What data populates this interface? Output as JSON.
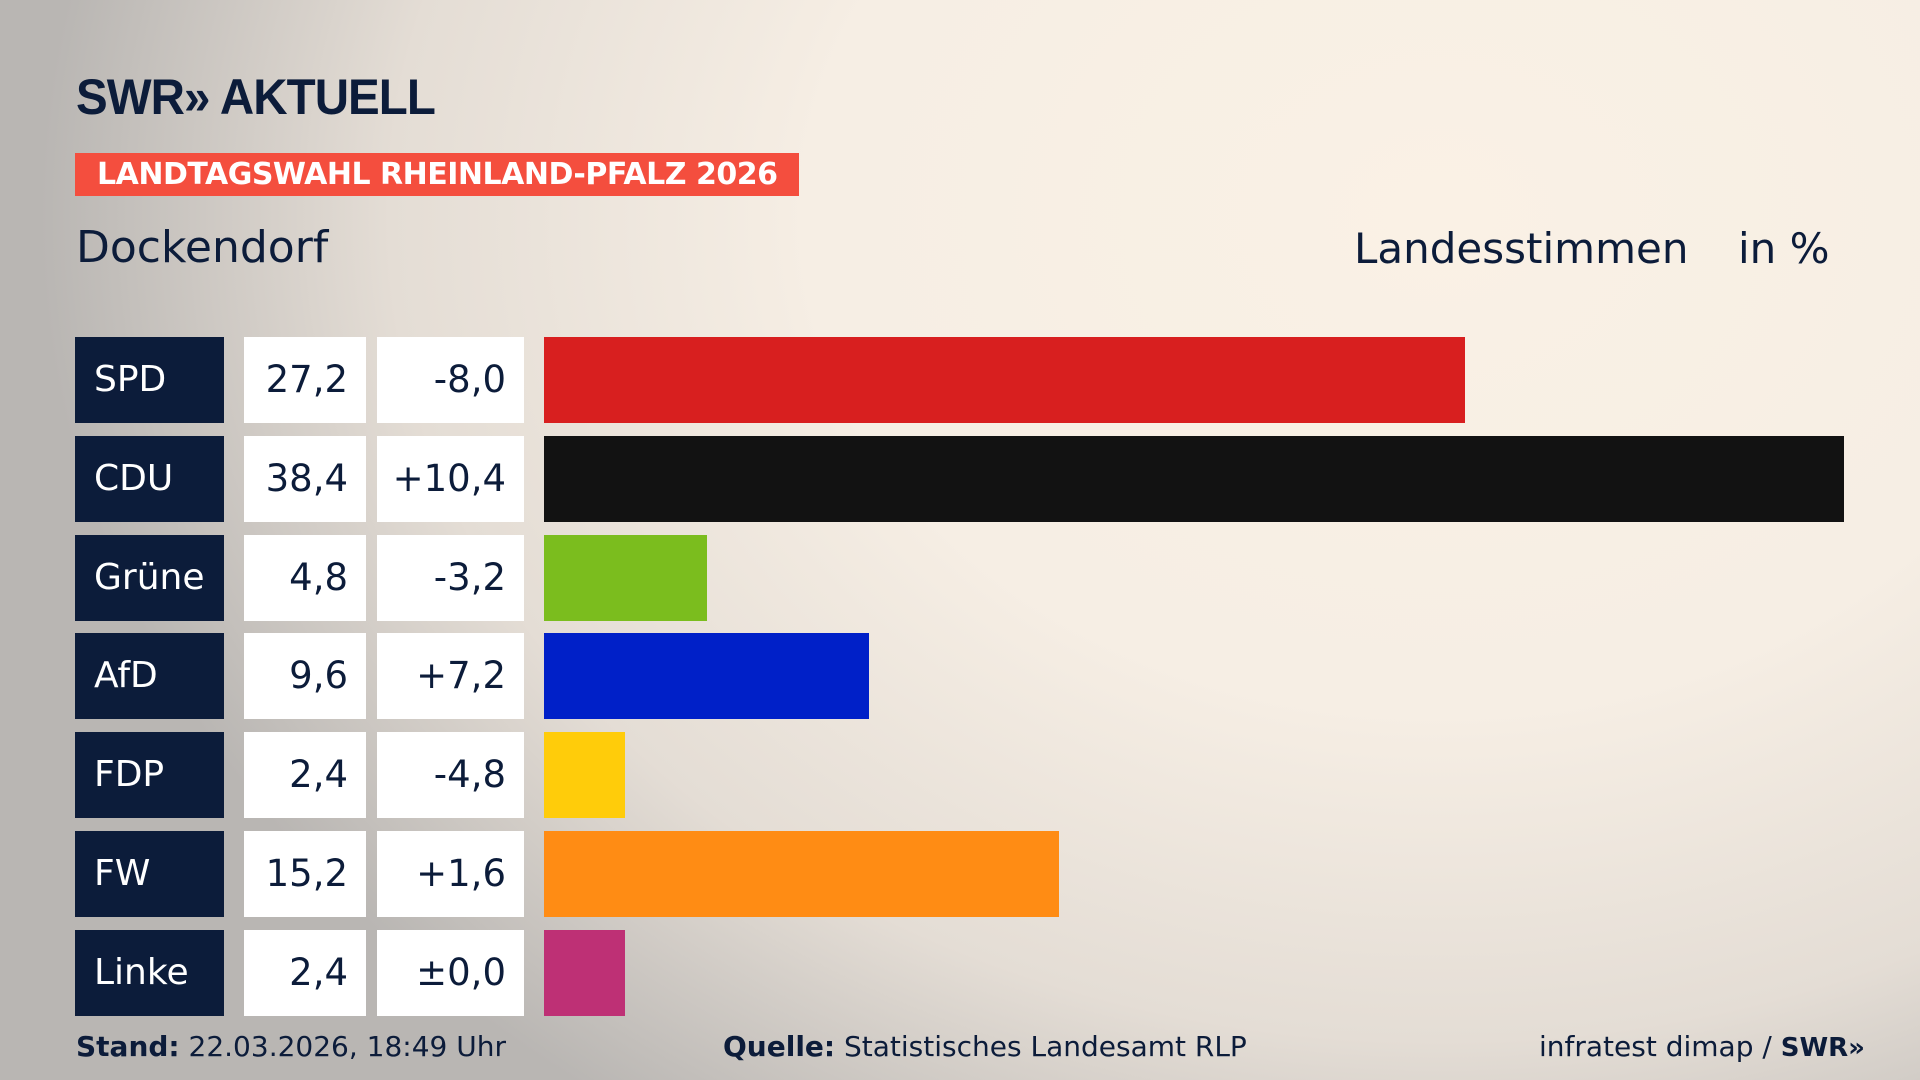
{
  "header": {
    "logo": "SWR» AKTUELL",
    "banner": "LANDTAGSWAHL RHEINLAND-PFALZ 2026",
    "place": "Dockendorf",
    "vote_type": "Landesstimmen",
    "unit": "in %"
  },
  "chart_data": {
    "type": "bar",
    "orientation": "horizontal",
    "categories": [
      "SPD",
      "CDU",
      "Grüne",
      "AfD",
      "FDP",
      "FW",
      "Linke"
    ],
    "values": [
      27.2,
      38.4,
      4.8,
      9.6,
      2.4,
      15.2,
      2.4
    ],
    "value_labels": [
      "27,2",
      "38,4",
      "4,8",
      "9,6",
      "2,4",
      "15,2",
      "2,4"
    ],
    "diff_labels": [
      "-8,0",
      "+10,4",
      "-3,2",
      "+7,2",
      "-4,8",
      "+1,6",
      "±0,0"
    ],
    "diffs": [
      -8.0,
      10.4,
      -3.2,
      7.2,
      -4.8,
      1.6,
      0.0
    ],
    "colors": [
      "#d81f1f",
      "#121212",
      "#7bbd1e",
      "#0020c8",
      "#ffcc0a",
      "#ff8c14",
      "#be3075"
    ],
    "xlim": [
      0,
      38.4
    ],
    "grid": false,
    "legend": "none"
  },
  "footer": {
    "stand_label": "Stand:",
    "stand_value": "22.03.2026, 18:49 Uhr",
    "source_label": "Quelle:",
    "source_value": "Statistisches Landesamt RLP",
    "credit": "infratest dimap /",
    "credit_logo": "SWR»"
  }
}
